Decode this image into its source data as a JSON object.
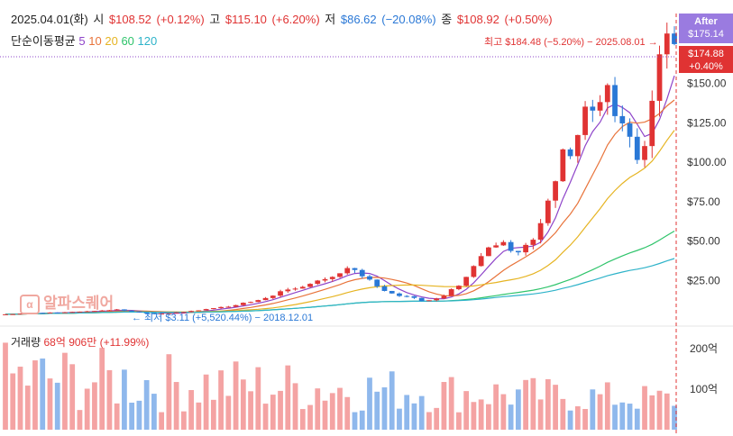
{
  "header": {
    "date": "2025.04.01(화)",
    "open_label": "시",
    "open_value": "$108.52",
    "open_change": "(+0.12%)",
    "high_label": "고",
    "high_value": "$115.10",
    "high_change": "(+6.20%)",
    "low_label": "저",
    "low_value": "$86.62",
    "low_change": "(−20.08%)",
    "close_label": "종",
    "close_value": "$108.92",
    "close_change": "(+0.50%)"
  },
  "ma_legend": {
    "label": "단순이동평균",
    "periods": [
      "5",
      "10",
      "20",
      "60",
      "120"
    ],
    "colors": [
      "#8e44c9",
      "#e8733a",
      "#e6b422",
      "#2fc46b",
      "#2eb3c9"
    ]
  },
  "volume_header": {
    "label": "거래량",
    "value": "68억 906만",
    "change": "(+11.99%)"
  },
  "badges": {
    "after_label": "After",
    "after_price": "$175.14",
    "last_price": "$174.88",
    "last_change": "+0.40%"
  },
  "annotations": {
    "high": "최고 $184.48 (−5.20%) − 2025.08.01",
    "low": "최저 $3.11 (+5,520.44%) − 2018.12.01"
  },
  "watermark": "알파스퀘어",
  "colors": {
    "up": "#e03333",
    "down": "#2a78d6",
    "vol_up": "#f4a3a3",
    "vol_down": "#8fb8ec"
  },
  "chart_data": {
    "type": "candlestick",
    "title": "",
    "ylim": [
      0,
      200
    ],
    "price_ticks": [
      25,
      50,
      75,
      100,
      125,
      150
    ],
    "price_tick_labels": [
      "$25.00",
      "$50.00",
      "$75.00",
      "$100.00",
      "$125.00",
      "$150.00"
    ],
    "volume_ticks": [
      100,
      200
    ],
    "volume_tick_labels": [
      "100억",
      "200억"
    ],
    "close": [
      3.5,
      3.6,
      3.9,
      4.1,
      4.4,
      4.2,
      4.6,
      4.4,
      4.8,
      5.0,
      5.2,
      5.4,
      5.6,
      5.9,
      6.1,
      6.6,
      5.8,
      5.3,
      4.6,
      4.3,
      3.6,
      3.9,
      4.2,
      4.7,
      4.9,
      5.6,
      6.0,
      6.8,
      7.4,
      8.1,
      8.3,
      9.3,
      10.8,
      11.3,
      12.5,
      13.8,
      15.3,
      18.1,
      19.2,
      19.8,
      20.9,
      22.8,
      24.9,
      25.8,
      27.2,
      29.5,
      32.8,
      31.6,
      27.6,
      25.5,
      21.2,
      18.3,
      16.7,
      15.1,
      15.0,
      13.9,
      11.9,
      12.4,
      13.5,
      15.2,
      19.4,
      21.6,
      27.2,
      34.1,
      40.4,
      45.9,
      47.2,
      49.3,
      43.7,
      42.8,
      47.5,
      50.8,
      61.3,
      75.6,
      87.9,
      108.1,
      103.8,
      117.2,
      135.2,
      132.7,
      138.1,
      148.9,
      129.2,
      124.6,
      116.1,
      101.4,
      110.2,
      138.9,
      168.4,
      181.6,
      174.9
    ]
  }
}
